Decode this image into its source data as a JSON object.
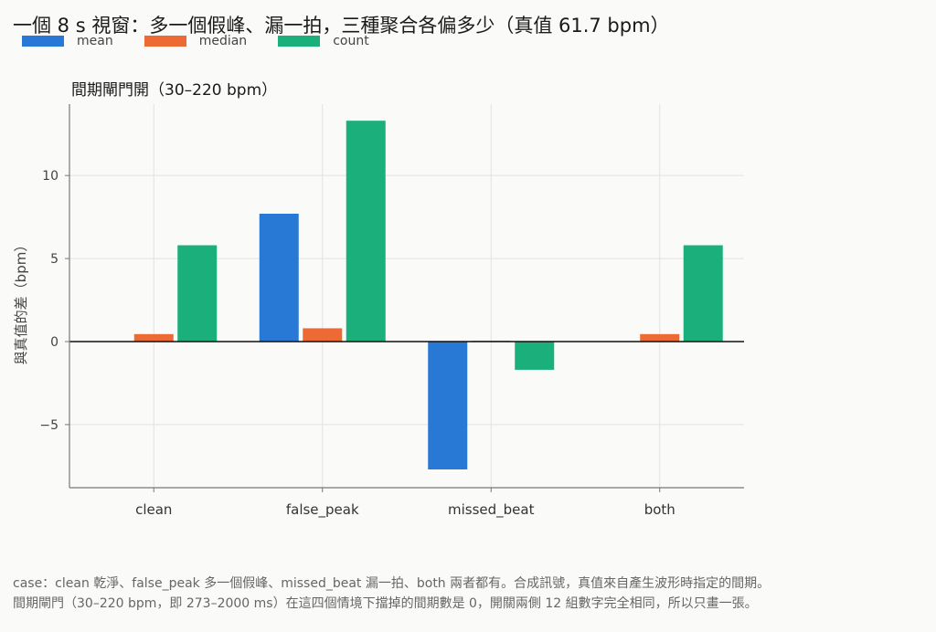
{
  "title": "一個 8 s 視窗：多一個假峰、漏一拍，三種聚合各偏多少（真值 61.7 bpm）",
  "colors": {
    "mean": "#2878d6",
    "median": "#ee6a35",
    "count": "#1aaf7b",
    "grid": "#e2e2e2",
    "axis": "#777777",
    "zero_line": "#111111"
  },
  "chart_data": {
    "type": "bar",
    "title": "一個 8 s 視窗：多一個假峰、漏一拍，三種聚合各偏多少（真值 61.7 bpm）",
    "subtitle": "間期閘門開（30–220 bpm）",
    "categories": [
      "clean",
      "false_peak",
      "missed_beat",
      "both"
    ],
    "series": [
      {
        "name": "mean",
        "values": [
          0.0,
          7.7,
          -7.7,
          0.0
        ]
      },
      {
        "name": "median",
        "values": [
          0.45,
          0.8,
          0.05,
          0.45
        ]
      },
      {
        "name": "count",
        "values": [
          5.8,
          13.3,
          -1.7,
          5.8
        ]
      }
    ],
    "xlabel": "",
    "ylabel": "與真值的差（bpm）",
    "ylim": [
      -8.8,
      14.3
    ],
    "yticks": [
      -5,
      0,
      5,
      10
    ],
    "ytick_labels": [
      "−5",
      "0",
      "5",
      "10"
    ],
    "grid": true,
    "legend": "top-left"
  },
  "footnote": {
    "line1": "case：clean 乾淨、false_peak 多一個假峰、missed_beat 漏一拍、both 兩者都有。合成訊號，真值來自產生波形時指定的間期。",
    "line2": "間期閘門（30–220 bpm，即 273–2000 ms）在這四個情境下擋掉的間期數是 0，開關兩側 12 組數字完全相同，所以只畫一張。"
  }
}
